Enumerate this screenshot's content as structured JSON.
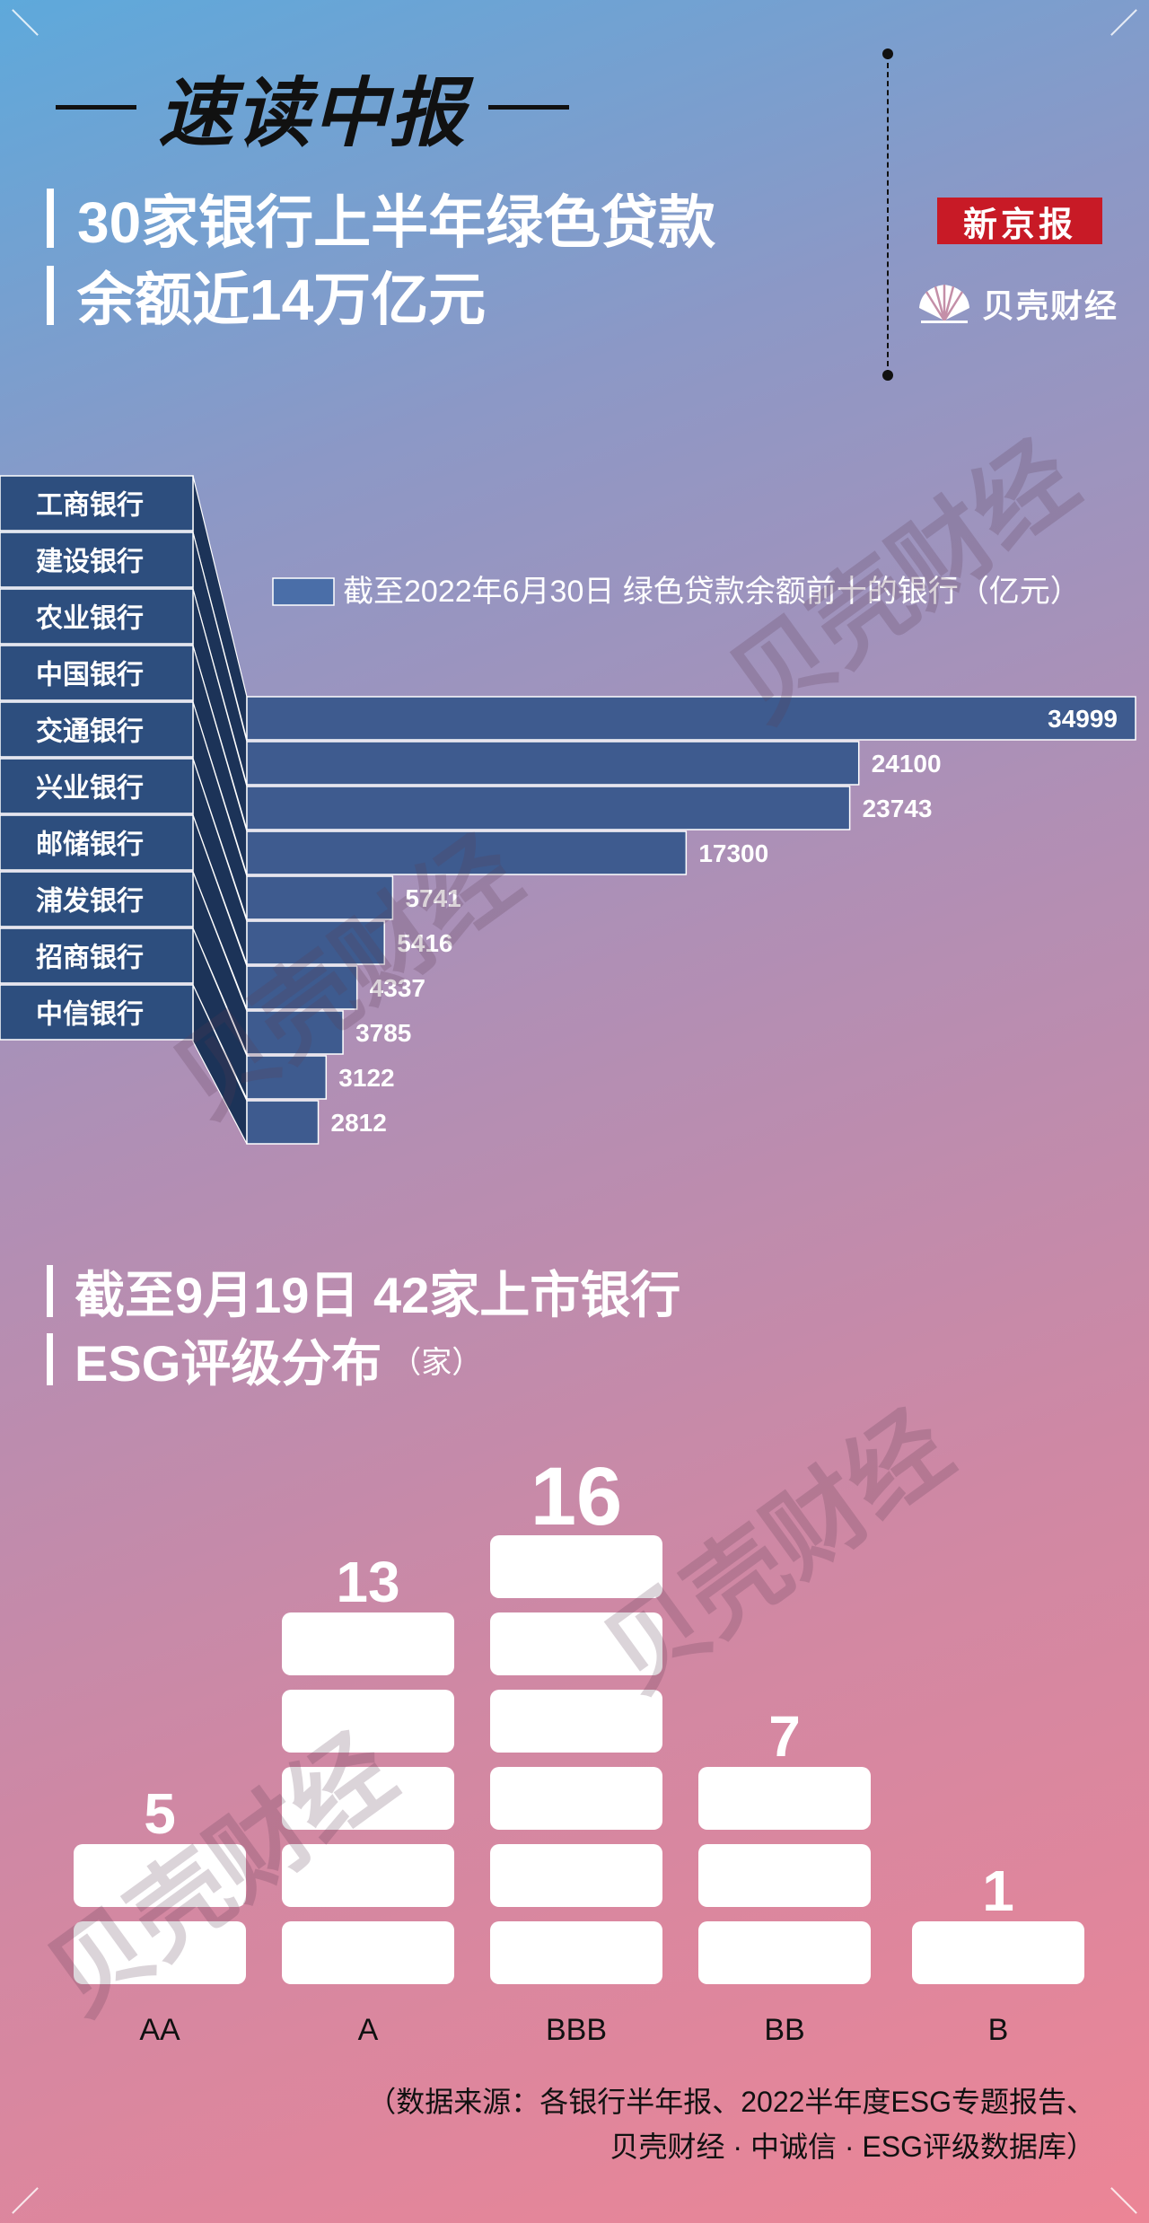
{
  "header": {
    "brand_title": "速读中报",
    "headline_line1": "30家银行上半年绿色贷款",
    "headline_line2": "余额近14万亿元",
    "logo_xjb": "新京报",
    "logo_bkcj": "贝壳财经"
  },
  "chart_data": [
    {
      "type": "bar",
      "title": "截至2022年6月30日 绿色贷款余额前十的银行（亿元）",
      "legend": [
        "截至2022年6月30日 绿色贷款余额前十的银行（亿元）"
      ],
      "categories": [
        "工商银行",
        "建设银行",
        "农业银行",
        "中国银行",
        "交通银行",
        "兴业银行",
        "邮储银行",
        "浦发银行",
        "招商银行",
        "中信银行"
      ],
      "values": [
        34999,
        24100,
        23743,
        17300,
        5741,
        5416,
        4337,
        3785,
        3122,
        2812
      ],
      "colors": {
        "bar": "#3e5b8f",
        "bar_side": "#1c3358",
        "label_box": "#2d4e7e"
      }
    },
    {
      "type": "bar",
      "title": "截至9月19日 42家上市银行 ESG评级分布",
      "unit": "（家）",
      "categories": [
        "AA",
        "A",
        "BBB",
        "BB",
        "B"
      ],
      "values": [
        5,
        13,
        16,
        7,
        1
      ]
    }
  ],
  "section2": {
    "title_line1": "截至9月19日 42家上市银行",
    "title_line2": "ESG评级分布",
    "unit": "（家）"
  },
  "source": {
    "line1": "（数据来源：各银行半年报、2022半年度ESG专题报告、",
    "line2": "贝壳财经 · 中诚信 · ESG评级数据库）"
  },
  "watermark": "贝壳财经"
}
